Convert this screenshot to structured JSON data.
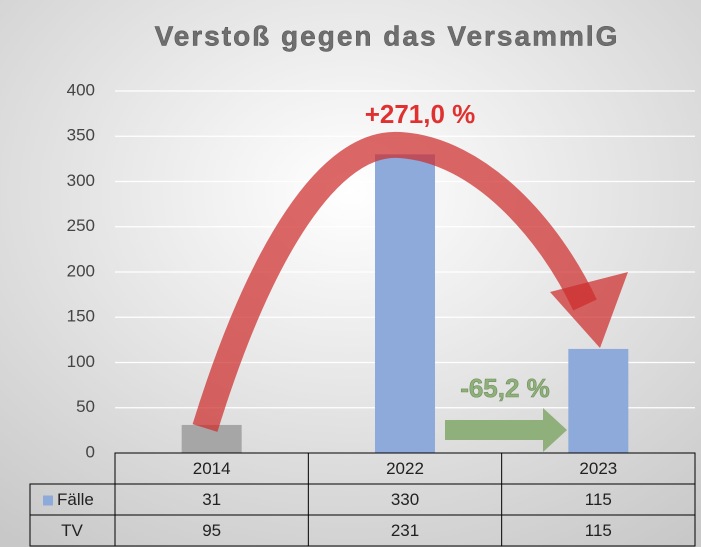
{
  "chart_data": {
    "type": "bar",
    "title": "Verstoß gegen das VersammlG",
    "categories": [
      "2014",
      "2022",
      "2023"
    ],
    "series": [
      {
        "name": "Fälle",
        "color": "#8eaadb",
        "values": [
          31,
          330,
          115
        ]
      },
      {
        "name": "TV",
        "values": [
          95,
          231,
          115
        ]
      }
    ],
    "bar_colors": [
      "#a6a6a6",
      "#8eaadb",
      "#8eaadb"
    ],
    "ylim": [
      0,
      400
    ],
    "yticks": [
      0,
      50,
      100,
      150,
      200,
      250,
      300,
      350,
      400
    ],
    "grid": true,
    "annotations": [
      "+271,0 %",
      "-65,2 %"
    ]
  }
}
